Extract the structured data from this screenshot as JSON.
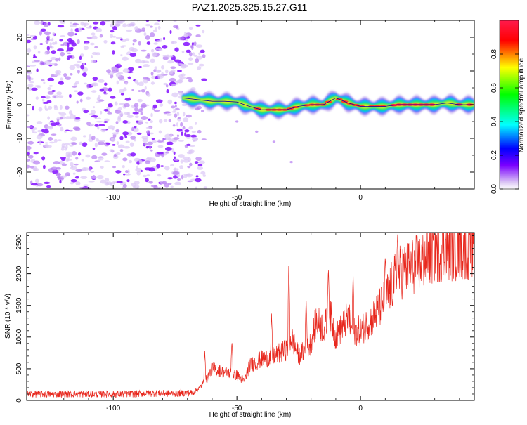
{
  "title": "PAZ1.2025.325.15.27.G11",
  "colors": {
    "background": "#ffffff",
    "snr_line": "#e8281e",
    "axis": "#000000",
    "ridge": "#0000aa"
  },
  "chart_data": [
    {
      "type": "heatmap",
      "xlabel": "Height of straight line (km)",
      "ylabel": "Frequency (Hz)",
      "xlim": [
        -135,
        46
      ],
      "ylim": [
        -25,
        25
      ],
      "xticks": [
        -100,
        -50,
        0
      ],
      "yticks": [
        -20,
        -10,
        0,
        10,
        20
      ],
      "colorbar": {
        "label": "Normalized spectral amplitude",
        "range": [
          0.0,
          1.0
        ],
        "ticks": [
          "0.0",
          "0.2",
          "0.4",
          "0.6",
          "0.8"
        ],
        "colormap": [
          "#dbc5f5",
          "#7a00ff",
          "#0000ff",
          "#00ffff",
          "#00ff00",
          "#ffff00",
          "#ff0000",
          "#ff1a4d"
        ]
      },
      "noise_region_x": [
        -135,
        -66
      ],
      "ridge": {
        "x": [
          -72,
          -66,
          -60,
          -55,
          -50,
          -45,
          -40,
          -35,
          -30,
          -25,
          -20,
          -15,
          -10,
          -5,
          0,
          5,
          10,
          15,
          20,
          25,
          30,
          35,
          40,
          46
        ],
        "freq": [
          2,
          1.5,
          1,
          1,
          0.8,
          -0.5,
          -1.5,
          -1.5,
          -1.5,
          -0.5,
          0,
          0,
          2,
          0.5,
          -0.5,
          -0.5,
          -0.5,
          0,
          0,
          0,
          0,
          0.5,
          0,
          0
        ],
        "amplitude": [
          0.45,
          0.6,
          0.7,
          0.6,
          0.55,
          0.7,
          0.75,
          0.8,
          0.7,
          0.85,
          0.8,
          0.85,
          0.7,
          0.8,
          0.85,
          0.8,
          0.85,
          0.9,
          0.95,
          0.95,
          0.9,
          0.9,
          0.9,
          0.9
        ]
      },
      "faint_tail": {
        "x": [
          -50,
          -42,
          -35,
          -28
        ],
        "freq": [
          -5,
          -8,
          -11,
          -17
        ]
      }
    },
    {
      "type": "line",
      "xlabel": "Height of straight line (km)",
      "ylabel": "SNR (10 * v/v)",
      "xlim": [
        -135,
        46
      ],
      "ylim": [
        0,
        2650
      ],
      "xticks": [
        -100,
        -50,
        0
      ],
      "yticks": [
        0,
        500,
        1000,
        1500,
        2000,
        2500
      ],
      "series": [
        {
          "name": "SNR",
          "x": [
            -135,
            -125,
            -115,
            -105,
            -95,
            -85,
            -75,
            -68,
            -65,
            -62,
            -60,
            -55,
            -50,
            -47,
            -45,
            -40,
            -35,
            -30,
            -28,
            -25,
            -20,
            -18,
            -15,
            -12,
            -10,
            -5,
            -3,
            0,
            5,
            10,
            15,
            20,
            25,
            30,
            35,
            40,
            46
          ],
          "y": [
            100,
            100,
            100,
            100,
            100,
            110,
            110,
            120,
            200,
            350,
            500,
            450,
            400,
            300,
            550,
            650,
            700,
            800,
            1000,
            700,
            900,
            1250,
            1150,
            1300,
            1000,
            1300,
            1100,
            1100,
            1300,
            1600,
            2000,
            2100,
            2200,
            2350,
            2400,
            2400,
            2450
          ]
        }
      ],
      "spikes": [
        {
          "x": -63,
          "y": 780
        },
        {
          "x": -52,
          "y": 940
        },
        {
          "x": -36,
          "y": 1370
        },
        {
          "x": -29,
          "y": 2220
        },
        {
          "x": -22,
          "y": 1630
        },
        {
          "x": -13,
          "y": 2110
        },
        {
          "x": -3,
          "y": 1990
        },
        {
          "x": 10,
          "y": 2290
        },
        {
          "x": 15,
          "y": 2620
        },
        {
          "x": 44,
          "y": 2620
        }
      ]
    }
  ]
}
